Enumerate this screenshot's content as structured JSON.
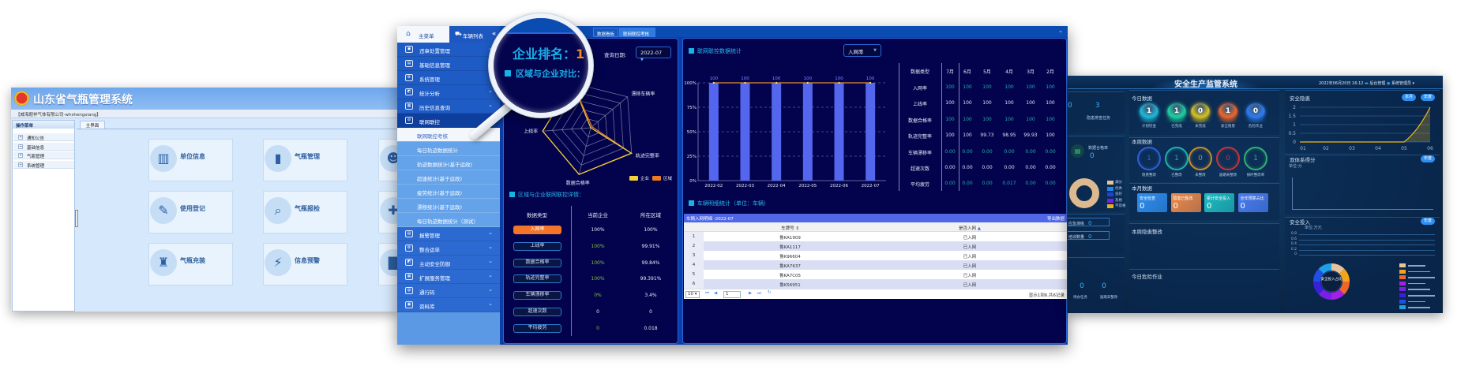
{
  "left_app": {
    "title": "山东省气瓶管理系统",
    "user": "【威海题祥气体有限公司-whshengxiang】",
    "menu_title": "操作菜单",
    "menu_items": [
      "通知公告",
      "基础信息",
      "气瓶管理",
      "系统管理"
    ],
    "tab": "主界面",
    "cards": [
      {
        "label": "单位信息",
        "icon": "building-icon"
      },
      {
        "label": "气瓶管理",
        "icon": "gas-cylinder-icon"
      },
      {
        "label": "使用登记",
        "icon": "edit-document-icon"
      },
      {
        "label": "气瓶报检",
        "icon": "inspection-icon"
      },
      {
        "label": "气瓶充装",
        "icon": "filling-icon"
      },
      {
        "label": "信息预警",
        "icon": "alarm-light-icon"
      }
    ],
    "partial_card_icons": [
      "user-icon",
      "wrench-icon",
      "chart-icon"
    ]
  },
  "main_app": {
    "sidebar": {
      "main_tab": "主菜单",
      "vehicle_tab": "车辆列表",
      "items": [
        {
          "label": "违章处置管理",
          "type": "main",
          "expandable": true
        },
        {
          "label": "基础信息管理",
          "type": "main",
          "expandable": true
        },
        {
          "label": "系统管理",
          "type": "main",
          "expandable": false
        },
        {
          "label": "统计分析",
          "type": "main",
          "expandable": true
        },
        {
          "label": "历史信息查询",
          "type": "main",
          "expandable": true
        },
        {
          "label": "联网联控",
          "type": "main-active",
          "expandable": false
        },
        {
          "label": "联网联控考核",
          "type": "sub-selected"
        },
        {
          "label": "每日轨迹数据统计",
          "type": "sub"
        },
        {
          "label": "轨迹数据统计(基于运政)",
          "type": "sub"
        },
        {
          "label": "超速统计(基于运政)",
          "type": "sub"
        },
        {
          "label": "疲劳统计(基于运政)",
          "type": "sub"
        },
        {
          "label": "漂移统计(基于运政)",
          "type": "sub"
        },
        {
          "label": "每日轨迹数据统计（测试）",
          "type": "sub"
        },
        {
          "label": "报警管理",
          "type": "main",
          "expandable": true
        },
        {
          "label": "整合运单",
          "type": "main",
          "expandable": true
        },
        {
          "label": "主动安全防御",
          "type": "main",
          "expandable": true
        },
        {
          "label": "扩展服务管理",
          "type": "main",
          "expandable": true
        },
        {
          "label": "通行码",
          "type": "main",
          "expandable": true
        },
        {
          "label": "资料库",
          "type": "main",
          "expandable": true
        }
      ]
    },
    "tabs": [
      {
        "label": "数据看板",
        "active": false
      },
      {
        "label": "联网联控考核",
        "active": true,
        "closable": true
      }
    ],
    "ranking": {
      "label": "企业排名：",
      "value": "1"
    },
    "query_date": {
      "label": "查询日期:",
      "value": "2022-07"
    },
    "comparison_title": "区域与企业对比：",
    "radar_legend": [
      {
        "label": "企业",
        "color": "#f3d23a"
      },
      {
        "label": "区域",
        "color": "#f07a22"
      }
    ],
    "details": {
      "title": "区域与企业联网联控详情：",
      "headers": [
        "数据类型",
        "当前企业",
        "所在区域"
      ],
      "rows": [
        {
          "type": "入网率",
          "enterprise": "100%",
          "region": "100%",
          "highlight": true
        },
        {
          "type": "上线率",
          "enterprise": "100%",
          "region": "99.91%"
        },
        {
          "type": "数据合格率",
          "enterprise": "100%",
          "region": "99.84%"
        },
        {
          "type": "轨迹完整率",
          "enterprise": "100%",
          "region": "99.391%"
        },
        {
          "type": "车辆漂移率",
          "enterprise": "0%",
          "region": "3.4%"
        },
        {
          "type": "超速次数",
          "enterprise": "0",
          "region": "0"
        },
        {
          "type": "平均疲劳",
          "enterprise": "0",
          "region": "0.018"
        }
      ]
    },
    "stats": {
      "title": "联网联控数据统计",
      "metric_select": "入网率",
      "table": {
        "headers": [
          "数据类型",
          "7月",
          "6月",
          "5月",
          "4月",
          "3月",
          "2月"
        ],
        "rows": [
          [
            "入网率",
            "100",
            "100",
            "100",
            "100",
            "100",
            "100"
          ],
          [
            "上线率",
            "100",
            "100",
            "100",
            "100",
            "100",
            "100"
          ],
          [
            "数据合格率",
            "100",
            "100",
            "100",
            "100",
            "100",
            "100"
          ],
          [
            "轨迹完整率",
            "100",
            "100",
            "99.73",
            "98.95",
            "99.93",
            "100"
          ],
          [
            "车辆漂移率",
            "0.00",
            "0.00",
            "0.00",
            "0.00",
            "0.00",
            "0.00"
          ],
          [
            "超速次数",
            "0.00",
            "0.00",
            "0.00",
            "0.00",
            "0.00",
            "0.00"
          ],
          [
            "平均疲劳",
            "0.00",
            "0.00",
            "0.00",
            "0.017",
            "0.00",
            "0.00"
          ]
        ]
      }
    },
    "vehicle_detail": {
      "title": "车辆明细统计（单位：车辆）",
      "bar_title": "车辆入网明细 -2022-07",
      "export": "导出数据",
      "columns": [
        "车牌号",
        "是否入网"
      ],
      "rows": [
        [
          "1",
          "鲁KA1909",
          "已入网"
        ],
        [
          "2",
          "鲁KA1117",
          "已入网"
        ],
        [
          "3",
          "鲁K96604",
          "已入网"
        ],
        [
          "4",
          "鲁KA7637",
          "已入网"
        ],
        [
          "5",
          "鲁KA7C05",
          "已入网"
        ],
        [
          "6",
          "鲁K56951",
          "已入网"
        ]
      ],
      "page_size": "10",
      "page": "1",
      "summary": "显示1到6,共6记录"
    }
  },
  "right_app": {
    "title": "安全生产监管系统",
    "datetime": "2022年06月20日 16:12",
    "admin_link": "后台管理",
    "user": "系统管理员",
    "left": {
      "task_value": "3",
      "task_label": "隐患排查任务",
      "partial_value": "0",
      "rate_label": "数据合格率",
      "rate_value": "0",
      "grade_legend": [
        {
          "label": "满分",
          "color": "#e6c39a"
        },
        {
          "label": "优秀",
          "color": "#1f86e6"
        },
        {
          "label": "良好",
          "color": "#1a44d8"
        },
        {
          "label": "及格",
          "color": "#7a1fe6"
        },
        {
          "label": "不及格",
          "color": "#e3b21c"
        }
      ],
      "boxes": [
        {
          "label": "应急演练",
          "value": "0"
        },
        {
          "label": "培训数量",
          "value": "0"
        }
      ],
      "bottom": [
        {
          "label": "待办任务",
          "value": "0"
        },
        {
          "label": "逾期未整改",
          "value": "0"
        }
      ]
    },
    "today": {
      "title": "今日数据",
      "items": [
        {
          "label": "计划检查",
          "value": "1",
          "color": "#1fb8d8"
        },
        {
          "label": "已完成",
          "value": "1",
          "color": "#1fd0a0"
        },
        {
          "label": "未完成",
          "value": "0",
          "color": "#d8c21f"
        },
        {
          "label": "安全隐患",
          "value": "1",
          "color": "#f0662a"
        },
        {
          "label": "危险作业",
          "value": "0",
          "color": "#2f7cf0"
        }
      ]
    },
    "week": {
      "title": "本周数据",
      "items": [
        {
          "label": "隐患整改",
          "value": "1",
          "color": "#2f5fd8"
        },
        {
          "label": "已整改",
          "value": "1",
          "color": "#1fb0a8"
        },
        {
          "label": "未整改",
          "value": "0",
          "color": "#c88a2a"
        },
        {
          "label": "逾期未整改",
          "value": "0",
          "color": "#c0353a"
        },
        {
          "label": "按时整改率",
          "value": "1",
          "color": "#2fb070"
        }
      ]
    },
    "month": {
      "title": "本月数据",
      "items": [
        {
          "label": "安全检查",
          "value": "0",
          "color": "#2f8ef0"
        },
        {
          "label": "隐患已整改",
          "value": "0",
          "color": "#f08a4a"
        },
        {
          "label": "累计安全投入",
          "value": "0",
          "color": "#1fbcc0"
        },
        {
          "label": "全年预算占比",
          "value": "0",
          "color": "#4a7cf0"
        }
      ]
    },
    "week_rectify_title": "本周隐患整改",
    "today_danger_title": "今日危险作业",
    "hazard": {
      "title": "安全隐患",
      "btn_month": "本月",
      "btn_year": "年度"
    },
    "dual": {
      "title": "双体系得分",
      "btn_year": "年度",
      "unit": "单位:分"
    },
    "invest": {
      "title": "安全投入",
      "btn_year": "年度",
      "unit": "单位:万元",
      "donut_label": "安全投入占比",
      "slice_colors": [
        "#e6c39a",
        "#f5a31a",
        "#f0662a",
        "#a51fe6",
        "#7a1fe6",
        "#3a1fd8",
        "#1f4fe6",
        "#1f9fe6"
      ],
      "yticks": [
        "0.8",
        "0.6",
        "0.4",
        "0.2",
        "0"
      ]
    }
  },
  "chart_data": [
    {
      "type": "bar",
      "title": "联网联控数据统计",
      "categories": [
        "2022-02",
        "2022-03",
        "2022-04",
        "2022-05",
        "2022-06",
        "2022-07"
      ],
      "series": [
        {
          "kind": "bar",
          "values": [
            100,
            100,
            100,
            100,
            100,
            100
          ],
          "color": "#5566ee"
        },
        {
          "kind": "line",
          "values": [
            100,
            100,
            100,
            100,
            100,
            100
          ],
          "color": "#e0902a"
        }
      ],
      "data_labels": [
        "100",
        "100",
        "100",
        "100",
        "100",
        "100"
      ],
      "yticks": [
        "0%",
        "25%",
        "50%",
        "75%",
        "100%"
      ],
      "ylim": [
        0,
        100
      ],
      "grid": true
    },
    {
      "type": "radar",
      "axes": [
        "",
        "漂移车辆率",
        "轨迹完整率",
        "数据合格率",
        "上线率"
      ],
      "max": 100,
      "series": [
        {
          "name": "企业",
          "values": [
            100,
            0,
            100,
            100,
            100
          ],
          "color": "#f3d23a"
        },
        {
          "name": "区域",
          "values": [
            100,
            3.4,
            99.391,
            99.84,
            99.91
          ],
          "color": "#f07a22"
        }
      ],
      "legend": "bottom-right"
    },
    {
      "type": "area",
      "title": "安全隐患",
      "categories": [
        "01",
        "02",
        "03",
        "04",
        "05",
        "06"
      ],
      "values": [
        0,
        0,
        0,
        0,
        0,
        2
      ],
      "yticks": [
        "0",
        "0.5",
        "1",
        "1.5",
        "2"
      ],
      "ylim": [
        0,
        2
      ],
      "color": "#f0b81c"
    }
  ]
}
